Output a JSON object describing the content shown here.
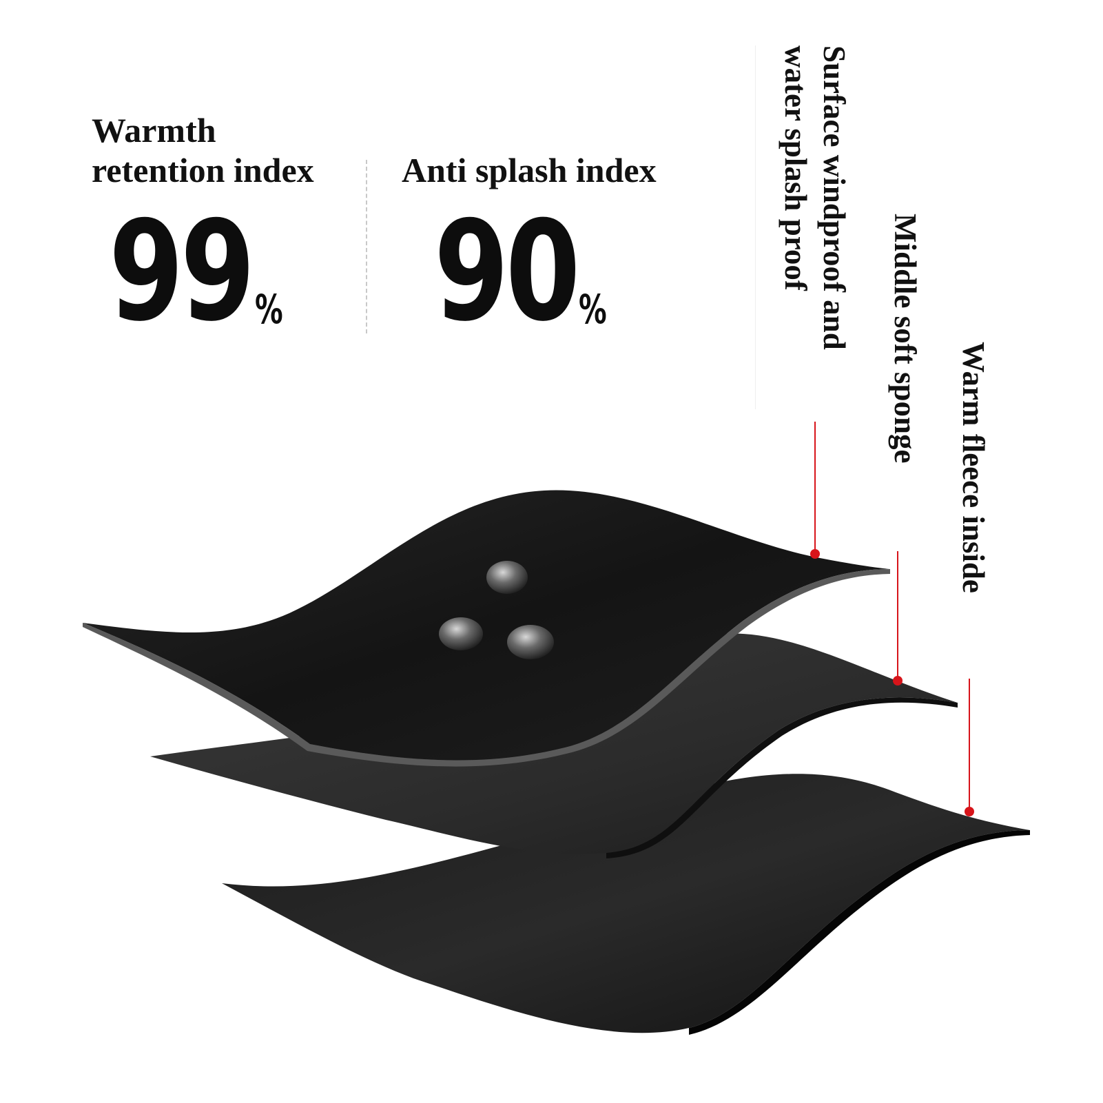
{
  "stats": {
    "warmth_label_line1": "Warmth",
    "warmth_label_line2": "retention index",
    "warmth_value": "99",
    "warmth_unit": "%",
    "splash_label": "Anti splash index",
    "splash_value": "90",
    "splash_unit": "%"
  },
  "layers": [
    {
      "line1": "Surface windproof and",
      "line2": "water splash proof"
    },
    {
      "line1": "Middle soft sponge"
    },
    {
      "line1": "Warm fleece inside"
    }
  ],
  "colors": {
    "background": "#ffffff",
    "text": "#111111",
    "fabric": "#1b1b1b",
    "sponge": "#2e2e2e",
    "fleece": "#141414",
    "pointer": "#d7141a"
  }
}
